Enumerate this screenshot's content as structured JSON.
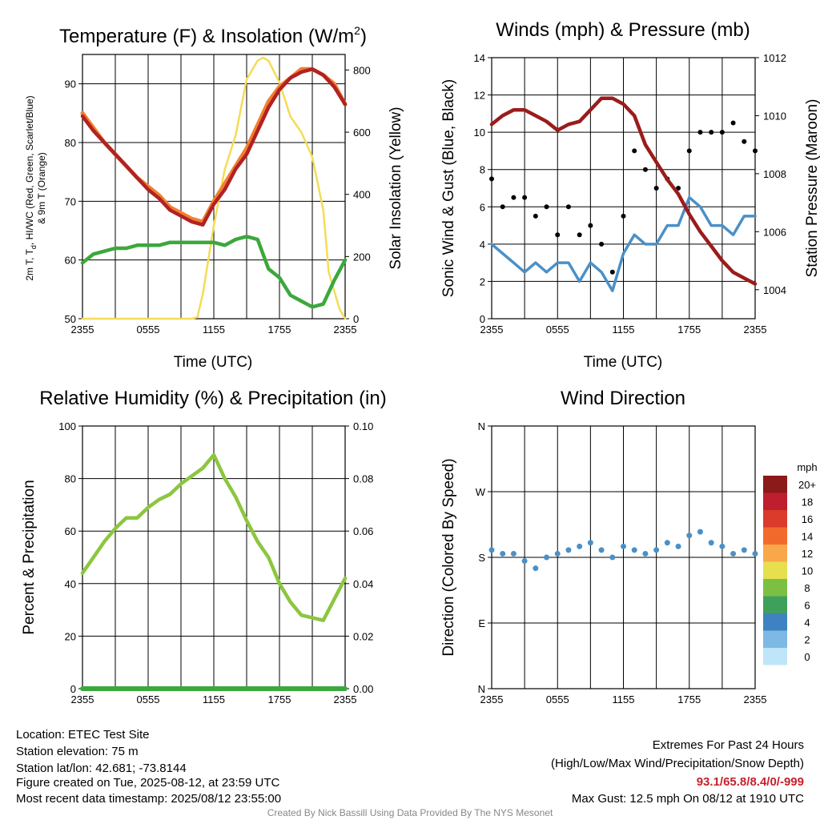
{
  "chart_data": [
    {
      "id": "temperature",
      "type": "line",
      "title": "Temperature (F) & Insolation (W/m",
      "title_sup": "2",
      "title_end": ")",
      "xlabel": "Time (UTC)",
      "ylabel_lines": [
        "2m T, T",
        "d",
        ", HI/WC (Red, Green, Scarlet/Blue)",
        "& 9m T (Orange)"
      ],
      "y2label": "Solar Insolation (Yellow)",
      "x_ticks": [
        "2355",
        "0555",
        "1155",
        "1755",
        "2355"
      ],
      "ylim": [
        50,
        95
      ],
      "y_ticks": [
        50,
        60,
        70,
        80,
        90
      ],
      "y2lim": [
        0,
        850
      ],
      "y2_ticks": [
        0,
        200,
        400,
        600,
        800
      ],
      "series": [
        {
          "color": "#F08030",
          "axis": "left",
          "x": [
            0,
            1,
            2,
            3,
            4,
            5,
            6,
            7,
            8,
            9,
            10,
            11,
            12,
            13,
            14,
            15,
            16,
            17,
            18,
            19,
            20,
            21,
            22,
            23,
            24
          ],
          "values": [
            85,
            82.5,
            80,
            78,
            76,
            74,
            72.5,
            71,
            69,
            68,
            67,
            66.5,
            70,
            73,
            76,
            79,
            83,
            87,
            89.5,
            91,
            92.5,
            92.5,
            91.5,
            90,
            86.5
          ]
        },
        {
          "color": "#B22222",
          "axis": "left",
          "x": [
            0,
            1,
            2,
            3,
            4,
            5,
            6,
            7,
            8,
            9,
            10,
            11,
            12,
            13,
            14,
            15,
            16,
            17,
            18,
            19,
            20,
            21,
            22,
            23,
            24
          ],
          "values": [
            84.5,
            82,
            80,
            78,
            76,
            74,
            72,
            70.5,
            68.5,
            67.5,
            66.5,
            66,
            69.5,
            72,
            75.5,
            78,
            82,
            86,
            89,
            91,
            92,
            92.5,
            91.5,
            89.5,
            86.5
          ]
        },
        {
          "color": "#3CA83C",
          "axis": "left",
          "x": [
            0,
            1,
            2,
            3,
            4,
            5,
            6,
            7,
            8,
            9,
            10,
            11,
            12,
            13,
            14,
            15,
            16,
            17,
            18,
            19,
            20,
            21,
            22,
            23,
            24
          ],
          "values": [
            59.5,
            61,
            61.5,
            62,
            62,
            62.5,
            62.5,
            62.5,
            63,
            63,
            63,
            63,
            63,
            62.5,
            63.5,
            64,
            63.5,
            58.5,
            57,
            54,
            53,
            52,
            52.5,
            56.5,
            60
          ]
        },
        {
          "color": "#F5DC55",
          "axis": "right",
          "x": [
            0,
            5,
            10,
            10.5,
            11,
            12,
            13,
            14,
            15,
            16,
            16.5,
            17,
            18,
            19,
            20,
            21,
            22,
            22.5,
            23,
            23.5,
            24
          ],
          "values": [
            0,
            0,
            0,
            5,
            80,
            300,
            480,
            590,
            770,
            830,
            840,
            830,
            760,
            650,
            600,
            520,
            350,
            150,
            90,
            30,
            0
          ]
        }
      ]
    },
    {
      "id": "winds",
      "type": "scatter",
      "title": "Winds (mph) & Pressure (mb)",
      "xlabel": "Time (UTC)",
      "ylabel": "Sonic Wind & Gust (Blue, Black)",
      "y2label": "Station Pressure (Maroon)",
      "x_ticks": [
        "2355",
        "0555",
        "1155",
        "1755",
        "2355"
      ],
      "ylim": [
        0,
        14
      ],
      "y_ticks": [
        0,
        2,
        4,
        6,
        8,
        10,
        12,
        14
      ],
      "y2lim": [
        1003,
        1012
      ],
      "y2_ticks": [
        1004,
        1006,
        1008,
        1010,
        1012
      ],
      "series": [
        {
          "name_hidden": "wind",
          "color": "#4A90C8",
          "x": [
            0,
            1,
            2,
            3,
            4,
            5,
            6,
            7,
            8,
            9,
            10,
            11,
            12,
            13,
            14,
            15,
            16,
            17,
            18,
            19,
            20,
            21,
            22,
            23,
            24
          ],
          "values": [
            4,
            3.5,
            3,
            2.5,
            3,
            2.5,
            3,
            3,
            2,
            3,
            2.5,
            1.5,
            3.5,
            4.5,
            4,
            4,
            5,
            5,
            6.5,
            6,
            5,
            5,
            4.5,
            5.5,
            5.5
          ]
        },
        {
          "name_hidden": "gust",
          "color": "#000000",
          "x": [
            0,
            1,
            2,
            3,
            4,
            5,
            6,
            7,
            8,
            9,
            10,
            11,
            12,
            13,
            14,
            15,
            16,
            17,
            18,
            19,
            20,
            21,
            22,
            23,
            24
          ],
          "values": [
            7.5,
            6,
            6.5,
            6.5,
            5.5,
            6,
            4.5,
            6,
            4.5,
            5,
            4,
            2.5,
            5.5,
            9,
            8,
            7,
            7.5,
            7,
            9,
            10,
            10,
            10,
            10.5,
            9.5,
            9
          ]
        },
        {
          "name_hidden": "pressure",
          "color": "#9B1C1C",
          "axis": "right",
          "x": [
            0,
            1,
            2,
            3,
            4,
            5,
            6,
            7,
            8,
            9,
            10,
            11,
            12,
            13,
            14,
            15,
            16,
            17,
            18,
            19,
            20,
            21,
            22,
            23,
            24
          ],
          "values": [
            1009.7,
            1010,
            1010.2,
            1010.2,
            1010,
            1009.8,
            1009.5,
            1009.7,
            1009.8,
            1010.2,
            1010.6,
            1010.6,
            1010.4,
            1010,
            1009,
            1008.4,
            1007.8,
            1007.3,
            1006.6,
            1006,
            1005.5,
            1005,
            1004.6,
            1004.4,
            1004.2
          ]
        }
      ]
    },
    {
      "id": "humidity",
      "type": "line",
      "title": "Relative Humidity (%) & Precipitation (in)",
      "ylabel": "Percent & Precipitation",
      "x_ticks": [
        "2355",
        "0555",
        "1155",
        "1755",
        "2355"
      ],
      "ylim": [
        0,
        100
      ],
      "y_ticks": [
        0,
        20,
        40,
        60,
        80,
        100
      ],
      "y2lim": [
        0,
        0.1
      ],
      "y2_ticks": [
        "0.00",
        "0.02",
        "0.04",
        "0.06",
        "0.08",
        "0.10"
      ],
      "series": [
        {
          "color": "#8CC63F",
          "x": [
            0,
            1,
            2,
            3,
            4,
            5,
            6,
            7,
            8,
            9,
            10,
            11,
            12,
            13,
            14,
            15,
            16,
            17,
            18,
            19,
            20,
            21,
            22,
            23,
            24
          ],
          "values": [
            44,
            50,
            56,
            61,
            65,
            65,
            69,
            72,
            74,
            78,
            81,
            84,
            89,
            80,
            73,
            64,
            56,
            50,
            40,
            33,
            28,
            27,
            26,
            34,
            42
          ]
        },
        {
          "color": "#3CA83C",
          "x": [
            0,
            24
          ],
          "values": [
            0,
            0
          ]
        }
      ]
    },
    {
      "id": "direction",
      "type": "scatter",
      "title": "Wind Direction",
      "ylabel": "Direction (Colored By Speed)",
      "x_ticks": [
        "2355",
        "0555",
        "1155",
        "1755",
        "2355"
      ],
      "y_ticks": [
        "N",
        "E",
        "S",
        "W",
        "N"
      ],
      "colorbar_title": "mph",
      "colorbar_labels": [
        "0",
        "2",
        "4",
        "6",
        "8",
        "10",
        "12",
        "14",
        "16",
        "18",
        "20+"
      ],
      "colorbar_colors": [
        "#BFE6F8",
        "#7DB9E4",
        "#3F82C1",
        "#3FA05C",
        "#7BC043",
        "#E6DF4E",
        "#F8A84B",
        "#F26A2C",
        "#DB3B2A",
        "#BE1E2D",
        "#8B1A1A"
      ],
      "series": [
        {
          "x": [
            0,
            1,
            2,
            3,
            4,
            5,
            6,
            7,
            8,
            9,
            10,
            11,
            12,
            13,
            14,
            15,
            16,
            17,
            18,
            19,
            20,
            21,
            22,
            23,
            24
          ],
          "values": [
            190,
            185,
            185,
            175,
            165,
            180,
            185,
            190,
            195,
            200,
            190,
            180,
            195,
            190,
            185,
            190,
            200,
            195,
            210,
            215,
            200,
            195,
            185,
            190,
            185
          ]
        }
      ]
    }
  ],
  "info": {
    "location": "Location: ETEC Test Site",
    "elevation": "Station elevation: 75 m",
    "latlon": "Station lat/lon: 42.681; -73.8144",
    "created": "Figure created on Tue, 2025-08-12, at 23:59 UTC",
    "recent": "Most recent data timestamp: 2025/08/12 23:55:00"
  },
  "extremes": {
    "title": "Extremes For Past 24 Hours",
    "subtitle": "(High/Low/Max Wind/Precipitation/Snow Depth)",
    "values": "93.1/65.8/8.4/0/-999",
    "values_color": "#C8202C",
    "max_gust": "Max Gust: 12.5 mph On 08/12 at 1910 UTC"
  },
  "credit": "Created By Nick Bassill Using Data Provided By The NYS Mesonet"
}
